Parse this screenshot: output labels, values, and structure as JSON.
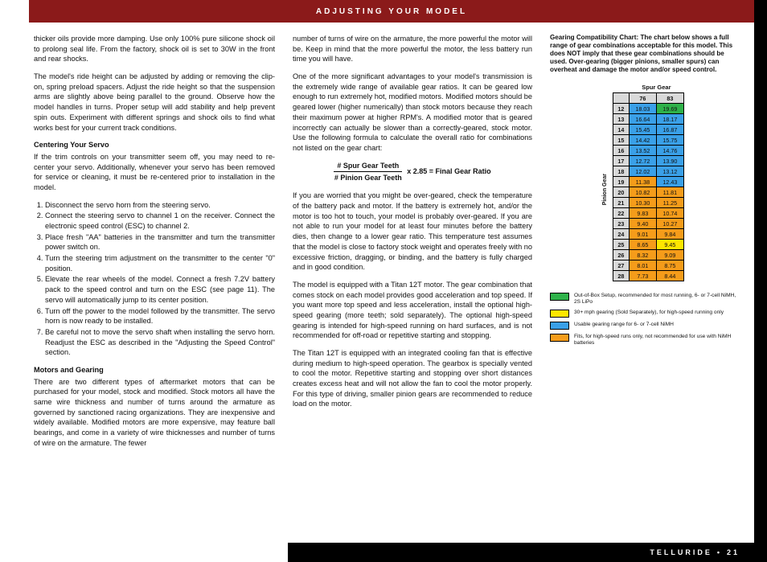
{
  "header": {
    "title": "ADJUSTING YOUR MODEL"
  },
  "footer": {
    "name": "TELLURIDE",
    "page": "21"
  },
  "left": {
    "p1": "thicker oils provide more damping. Use only 100% pure silicone shock oil to prolong seal life. From the factory, shock oil is set to 30W in the front and rear shocks.",
    "p2": "The model's ride height can be adjusted by adding or removing the clip-on, spring preload spacers. Adjust the ride height so that the suspension arms are slightly above being parallel to the ground. Observe how the model handles in turns. Proper setup will add stability and help prevent spin outs. Experiment with different springs and shock oils to find what works best for your current track conditions.",
    "h1": "Centering Your Servo",
    "p3": "If the trim controls on your transmitter seem off, you may need to re-center your servo. Additionally, whenever your servo has been removed for service or cleaning, it must be re-centered prior to installation in the model.",
    "ol": [
      "Disconnect the servo horn from the steering servo.",
      "Connect the steering servo to channel 1 on the receiver. Connect the electronic speed control (ESC) to channel 2.",
      "Place fresh \"AA\" batteries in the transmitter and turn the transmitter power switch on.",
      "Turn the steering trim adjustment on the transmitter to the center \"0\" position.",
      "Elevate the rear wheels of the model. Connect a fresh 7.2V battery pack to the speed control and turn on the ESC (see page 11). The servo will automatically jump to its center position.",
      "Turn off the power to the model followed by the transmitter. The servo horn is now ready to be installed.",
      "Be careful not to move the servo shaft when installing the servo horn. Readjust the ESC as described in the \"Adjusting the Speed Control\" section."
    ],
    "h2": "Motors and Gearing",
    "p4": "There are two different types of aftermarket motors that can be purchased for your model, stock and modified. Stock motors all have the same wire thickness and number of turns around the armature as governed by sanctioned racing organizations. They are inexpensive and widely available. Modified motors are more expensive, may feature ball bearings, and come in a variety of wire thicknesses and number of turns of wire on the armature. The fewer"
  },
  "mid": {
    "p1": "number of turns of wire on the armature, the more powerful the motor will be. Keep in mind that the more powerful the motor, the less battery run time you will have.",
    "p2": "One of the more significant advantages to your model's transmission is the extremely wide range of available gear ratios. It can be geared low enough to run extremely hot, modified motors. Modified motors should be geared lower (higher numerically) than stock motors because they reach their maximum power at higher RPM's. A modified motor that is geared incorrectly can actually be slower than a correctly-geared, stock motor. Use the following formula to calculate the overall ratio for combinations not listed on the gear chart:",
    "formula": {
      "top": "# Spur Gear Teeth",
      "bot": "# Pinion Gear Teeth",
      "rest": "x 2.85 = Final Gear Ratio"
    },
    "p3": "If you are worried that you might be over-geared, check the temperature of the battery pack and motor. If the battery is extremely hot, and/or the motor is too hot to touch, your model is probably over-geared. If you are not able to run your model for at least four minutes before the battery dies, then change to a lower gear ratio. This temperature test assumes that the model is close to factory stock weight and operates freely with no excessive friction, dragging, or binding, and the battery is fully charged and in good condition.",
    "p4": "The model is equipped with a Titan 12T motor. The gear combination that comes stock on each model provides good acceleration and top speed. If you want more top speed and less acceleration, install the optional high-speed gearing (more teeth; sold separately). The optional high-speed gearing is intended for high-speed running on hard surfaces, and is not recommended for off-road or repetitive starting and stopping.",
    "p5": "The Titan 12T is equipped with an integrated cooling fan that is effective during medium to high-speed operation. The gearbox is specially vented to cool the motor. Repetitive starting and stopping over short distances creates excess heat and will not allow the fan to cool the motor properly. For this type of driving, smaller pinion gears are recommended to reduce load on the motor."
  },
  "right": {
    "head": "Gearing Compatibility Chart:",
    "desc": "The chart below shows a full range of gear combinations acceptable for this model. This does NOT imply that these gear combinations should be used. Over-gearing (bigger pinions, smaller spurs) can overheat and damage the motor and/or speed control.",
    "pinion_label": "Pinion Gear",
    "spur_label": "Spur Gear",
    "cols": [
      "76",
      "83"
    ],
    "rows": [
      {
        "h": "12",
        "c": [
          {
            "v": "18.03",
            "bg": "#3aa0e8"
          },
          {
            "v": "19.69",
            "bg": "#2fb24a"
          }
        ]
      },
      {
        "h": "13",
        "c": [
          {
            "v": "16.64",
            "bg": "#3aa0e8"
          },
          {
            "v": "18.17",
            "bg": "#3aa0e8"
          }
        ]
      },
      {
        "h": "14",
        "c": [
          {
            "v": "15.45",
            "bg": "#3aa0e8"
          },
          {
            "v": "16.87",
            "bg": "#3aa0e8"
          }
        ]
      },
      {
        "h": "15",
        "c": [
          {
            "v": "14.42",
            "bg": "#3aa0e8"
          },
          {
            "v": "15.75",
            "bg": "#3aa0e8"
          }
        ]
      },
      {
        "h": "16",
        "c": [
          {
            "v": "13.52",
            "bg": "#3aa0e8"
          },
          {
            "v": "14.76",
            "bg": "#3aa0e8"
          }
        ]
      },
      {
        "h": "17",
        "c": [
          {
            "v": "12.72",
            "bg": "#3aa0e8"
          },
          {
            "v": "13.90",
            "bg": "#3aa0e8"
          }
        ]
      },
      {
        "h": "18",
        "c": [
          {
            "v": "12.02",
            "bg": "#3aa0e8"
          },
          {
            "v": "13.12",
            "bg": "#3aa0e8"
          }
        ]
      },
      {
        "h": "19",
        "c": [
          {
            "v": "11.38",
            "bg": "#f59c1a"
          },
          {
            "v": "12.43",
            "bg": "#3aa0e8"
          }
        ]
      },
      {
        "h": "20",
        "c": [
          {
            "v": "10.82",
            "bg": "#f59c1a"
          },
          {
            "v": "11.81",
            "bg": "#f59c1a"
          }
        ]
      },
      {
        "h": "21",
        "c": [
          {
            "v": "10.30",
            "bg": "#f59c1a"
          },
          {
            "v": "11.25",
            "bg": "#f59c1a"
          }
        ]
      },
      {
        "h": "22",
        "c": [
          {
            "v": "9.83",
            "bg": "#f59c1a"
          },
          {
            "v": "10.74",
            "bg": "#f59c1a"
          }
        ]
      },
      {
        "h": "23",
        "c": [
          {
            "v": "9.40",
            "bg": "#f59c1a"
          },
          {
            "v": "10.27",
            "bg": "#f59c1a"
          }
        ]
      },
      {
        "h": "24",
        "c": [
          {
            "v": "9.01",
            "bg": "#f59c1a"
          },
          {
            "v": "9.84",
            "bg": "#f59c1a"
          }
        ]
      },
      {
        "h": "25",
        "c": [
          {
            "v": "8.65",
            "bg": "#f59c1a"
          },
          {
            "v": "9.45",
            "bg": "#fee600"
          }
        ]
      },
      {
        "h": "26",
        "c": [
          {
            "v": "8.32",
            "bg": "#f59c1a"
          },
          {
            "v": "9.09",
            "bg": "#f59c1a"
          }
        ]
      },
      {
        "h": "27",
        "c": [
          {
            "v": "8.01",
            "bg": "#f59c1a"
          },
          {
            "v": "8.75",
            "bg": "#f59c1a"
          }
        ]
      },
      {
        "h": "28",
        "c": [
          {
            "v": "7.73",
            "bg": "#f59c1a"
          },
          {
            "v": "8.44",
            "bg": "#f59c1a"
          }
        ]
      }
    ],
    "legend": [
      {
        "color": "#2fb24a",
        "text": "Out-of-Box Setup, recommended for most running, 6- or 7-cell NiMH, 2S LiPo"
      },
      {
        "color": "#fee600",
        "text": "30+ mph gearing (Sold Separately), for high-speed running only"
      },
      {
        "color": "#3aa0e8",
        "text": "Usable gearing range for 6- or 7-cell NiMH"
      },
      {
        "color": "#f59c1a",
        "text": "Fits, for high-speed runs only, not recommended for use with NiMH batteries"
      }
    ]
  }
}
